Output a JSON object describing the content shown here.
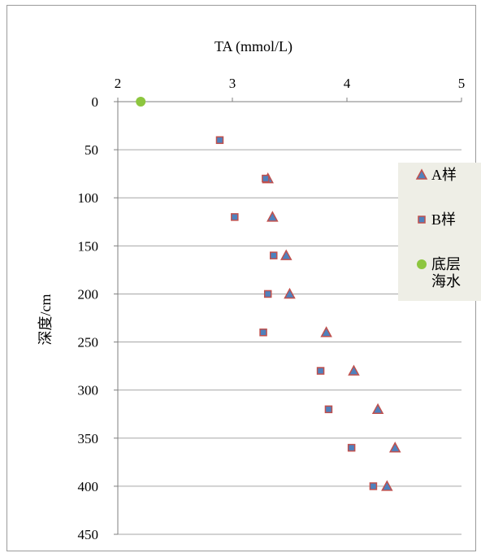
{
  "chart_data": {
    "type": "scatter",
    "xlabel": "TA (mmol/L)",
    "ylabel": "深度/cm",
    "xlim": [
      2,
      5
    ],
    "ylim": [
      0,
      450
    ],
    "x_ticks": [
      2,
      3,
      4,
      5
    ],
    "y_ticks": [
      0,
      50,
      100,
      150,
      200,
      250,
      300,
      350,
      400,
      450
    ],
    "x_axis_position": "top",
    "y_axis_inverted": true,
    "grid": "horizontal",
    "legend_position": "right",
    "series": [
      {
        "name": "A样",
        "marker": "triangle",
        "color": "#4f81bd",
        "edge_color": "#c0504d",
        "points": [
          {
            "x": 3.31,
            "y": 80
          },
          {
            "x": 3.35,
            "y": 120
          },
          {
            "x": 3.47,
            "y": 160
          },
          {
            "x": 3.5,
            "y": 200
          },
          {
            "x": 3.82,
            "y": 240
          },
          {
            "x": 4.06,
            "y": 280
          },
          {
            "x": 4.27,
            "y": 320
          },
          {
            "x": 4.42,
            "y": 360
          },
          {
            "x": 4.35,
            "y": 400
          }
        ]
      },
      {
        "name": "B样",
        "marker": "square",
        "color": "#4f81bd",
        "edge_color": "#c0504d",
        "points": [
          {
            "x": 2.89,
            "y": 40
          },
          {
            "x": 3.29,
            "y": 80
          },
          {
            "x": 3.02,
            "y": 120
          },
          {
            "x": 3.36,
            "y": 160
          },
          {
            "x": 3.31,
            "y": 200
          },
          {
            "x": 3.27,
            "y": 240
          },
          {
            "x": 3.77,
            "y": 280
          },
          {
            "x": 3.84,
            "y": 320
          },
          {
            "x": 4.04,
            "y": 360
          },
          {
            "x": 4.23,
            "y": 400
          }
        ]
      },
      {
        "name": "底层海水",
        "name_lines": [
          "底层",
          "海水"
        ],
        "marker": "circle",
        "color": "#8dc63f",
        "points": [
          {
            "x": 2.2,
            "y": 0
          }
        ]
      }
    ],
    "legend_background": "#eeeee6"
  }
}
